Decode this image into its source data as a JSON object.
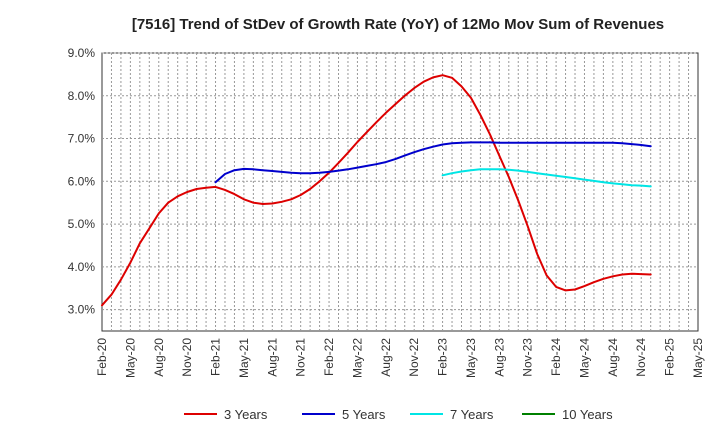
{
  "chart_data": {
    "type": "line",
    "title": "[7516]  Trend of StDev of Growth Rate (YoY) of 12Mo Mov Sum of Revenues",
    "xlabel": "",
    "ylabel": "",
    "ylim": [
      2.5,
      9.0
    ],
    "grid": true,
    "legend_position": "bottom",
    "y_ticks": [
      {
        "value": 3.0,
        "label": "3.0%"
      },
      {
        "value": 4.0,
        "label": "4.0%"
      },
      {
        "value": 5.0,
        "label": "5.0%"
      },
      {
        "value": 6.0,
        "label": "6.0%"
      },
      {
        "value": 7.0,
        "label": "7.0%"
      },
      {
        "value": 8.0,
        "label": "8.0%"
      },
      {
        "value": 9.0,
        "label": "9.0%"
      }
    ],
    "x_range_months": [
      0,
      63
    ],
    "x_ticks": [
      {
        "m": 0,
        "label": "Feb-20"
      },
      {
        "m": 3,
        "label": "May-20"
      },
      {
        "m": 6,
        "label": "Aug-20"
      },
      {
        "m": 9,
        "label": "Nov-20"
      },
      {
        "m": 12,
        "label": "Feb-21"
      },
      {
        "m": 15,
        "label": "May-21"
      },
      {
        "m": 18,
        "label": "Aug-21"
      },
      {
        "m": 21,
        "label": "Nov-21"
      },
      {
        "m": 24,
        "label": "Feb-22"
      },
      {
        "m": 27,
        "label": "May-22"
      },
      {
        "m": 30,
        "label": "Aug-22"
      },
      {
        "m": 33,
        "label": "Nov-22"
      },
      {
        "m": 36,
        "label": "Feb-23"
      },
      {
        "m": 39,
        "label": "May-23"
      },
      {
        "m": 42,
        "label": "Aug-23"
      },
      {
        "m": 45,
        "label": "Nov-23"
      },
      {
        "m": 48,
        "label": "Feb-24"
      },
      {
        "m": 51,
        "label": "May-24"
      },
      {
        "m": 54,
        "label": "Aug-24"
      },
      {
        "m": 57,
        "label": "Nov-24"
      },
      {
        "m": 60,
        "label": "Feb-25"
      },
      {
        "m": 63,
        "label": "May-25"
      }
    ],
    "series": [
      {
        "name": "3 Years",
        "color": "#dd0000",
        "points": [
          [
            0,
            3.1
          ],
          [
            1,
            3.35
          ],
          [
            2,
            3.7
          ],
          [
            3,
            4.1
          ],
          [
            4,
            4.55
          ],
          [
            5,
            4.9
          ],
          [
            6,
            5.25
          ],
          [
            7,
            5.5
          ],
          [
            8,
            5.65
          ],
          [
            9,
            5.75
          ],
          [
            10,
            5.82
          ],
          [
            11,
            5.85
          ],
          [
            12,
            5.87
          ],
          [
            13,
            5.8
          ],
          [
            14,
            5.7
          ],
          [
            15,
            5.58
          ],
          [
            16,
            5.5
          ],
          [
            17,
            5.47
          ],
          [
            18,
            5.48
          ],
          [
            19,
            5.52
          ],
          [
            20,
            5.58
          ],
          [
            21,
            5.68
          ],
          [
            22,
            5.82
          ],
          [
            23,
            6.0
          ],
          [
            24,
            6.2
          ],
          [
            25,
            6.43
          ],
          [
            26,
            6.67
          ],
          [
            27,
            6.92
          ],
          [
            28,
            7.15
          ],
          [
            29,
            7.38
          ],
          [
            30,
            7.6
          ],
          [
            31,
            7.8
          ],
          [
            32,
            8.0
          ],
          [
            33,
            8.18
          ],
          [
            34,
            8.33
          ],
          [
            35,
            8.43
          ],
          [
            36,
            8.48
          ],
          [
            37,
            8.42
          ],
          [
            38,
            8.22
          ],
          [
            39,
            7.95
          ],
          [
            40,
            7.55
          ],
          [
            41,
            7.1
          ],
          [
            42,
            6.6
          ],
          [
            43,
            6.1
          ],
          [
            44,
            5.55
          ],
          [
            45,
            4.95
          ],
          [
            46,
            4.3
          ],
          [
            47,
            3.8
          ],
          [
            48,
            3.53
          ],
          [
            49,
            3.45
          ],
          [
            50,
            3.47
          ],
          [
            51,
            3.55
          ],
          [
            52,
            3.64
          ],
          [
            53,
            3.72
          ],
          [
            54,
            3.78
          ],
          [
            55,
            3.82
          ],
          [
            56,
            3.84
          ],
          [
            57,
            3.83
          ],
          [
            58,
            3.82
          ]
        ]
      },
      {
        "name": "5 Years",
        "color": "#0000cc",
        "points": [
          [
            12,
            5.98
          ],
          [
            13,
            6.17
          ],
          [
            14,
            6.26
          ],
          [
            15,
            6.29
          ],
          [
            16,
            6.28
          ],
          [
            17,
            6.26
          ],
          [
            18,
            6.24
          ],
          [
            19,
            6.22
          ],
          [
            20,
            6.2
          ],
          [
            21,
            6.19
          ],
          [
            22,
            6.19
          ],
          [
            23,
            6.2
          ],
          [
            24,
            6.22
          ],
          [
            25,
            6.25
          ],
          [
            26,
            6.28
          ],
          [
            27,
            6.32
          ],
          [
            28,
            6.36
          ],
          [
            29,
            6.4
          ],
          [
            30,
            6.45
          ],
          [
            31,
            6.52
          ],
          [
            32,
            6.6
          ],
          [
            33,
            6.68
          ],
          [
            34,
            6.75
          ],
          [
            35,
            6.81
          ],
          [
            36,
            6.86
          ],
          [
            37,
            6.89
          ],
          [
            38,
            6.9
          ],
          [
            39,
            6.91
          ],
          [
            40,
            6.91
          ],
          [
            41,
            6.91
          ],
          [
            42,
            6.9
          ],
          [
            43,
            6.9
          ],
          [
            44,
            6.9
          ],
          [
            45,
            6.9
          ],
          [
            46,
            6.9
          ],
          [
            47,
            6.9
          ],
          [
            48,
            6.9
          ],
          [
            49,
            6.9
          ],
          [
            50,
            6.9
          ],
          [
            51,
            6.9
          ],
          [
            52,
            6.9
          ],
          [
            53,
            6.9
          ],
          [
            54,
            6.9
          ],
          [
            55,
            6.89
          ],
          [
            56,
            6.87
          ],
          [
            57,
            6.85
          ],
          [
            58,
            6.82
          ]
        ]
      },
      {
        "name": "7 Years",
        "color": "#00e5e5",
        "points": [
          [
            36,
            6.14
          ],
          [
            37,
            6.19
          ],
          [
            38,
            6.23
          ],
          [
            39,
            6.26
          ],
          [
            40,
            6.28
          ],
          [
            41,
            6.28
          ],
          [
            42,
            6.28
          ],
          [
            43,
            6.27
          ],
          [
            44,
            6.25
          ],
          [
            45,
            6.22
          ],
          [
            46,
            6.19
          ],
          [
            47,
            6.16
          ],
          [
            48,
            6.13
          ],
          [
            49,
            6.1
          ],
          [
            50,
            6.07
          ],
          [
            51,
            6.04
          ],
          [
            52,
            6.01
          ],
          [
            53,
            5.98
          ],
          [
            54,
            5.95
          ],
          [
            55,
            5.93
          ],
          [
            56,
            5.91
          ],
          [
            57,
            5.9
          ],
          [
            58,
            5.88
          ]
        ]
      },
      {
        "name": "10 Years",
        "color": "#008000",
        "points": []
      }
    ]
  }
}
